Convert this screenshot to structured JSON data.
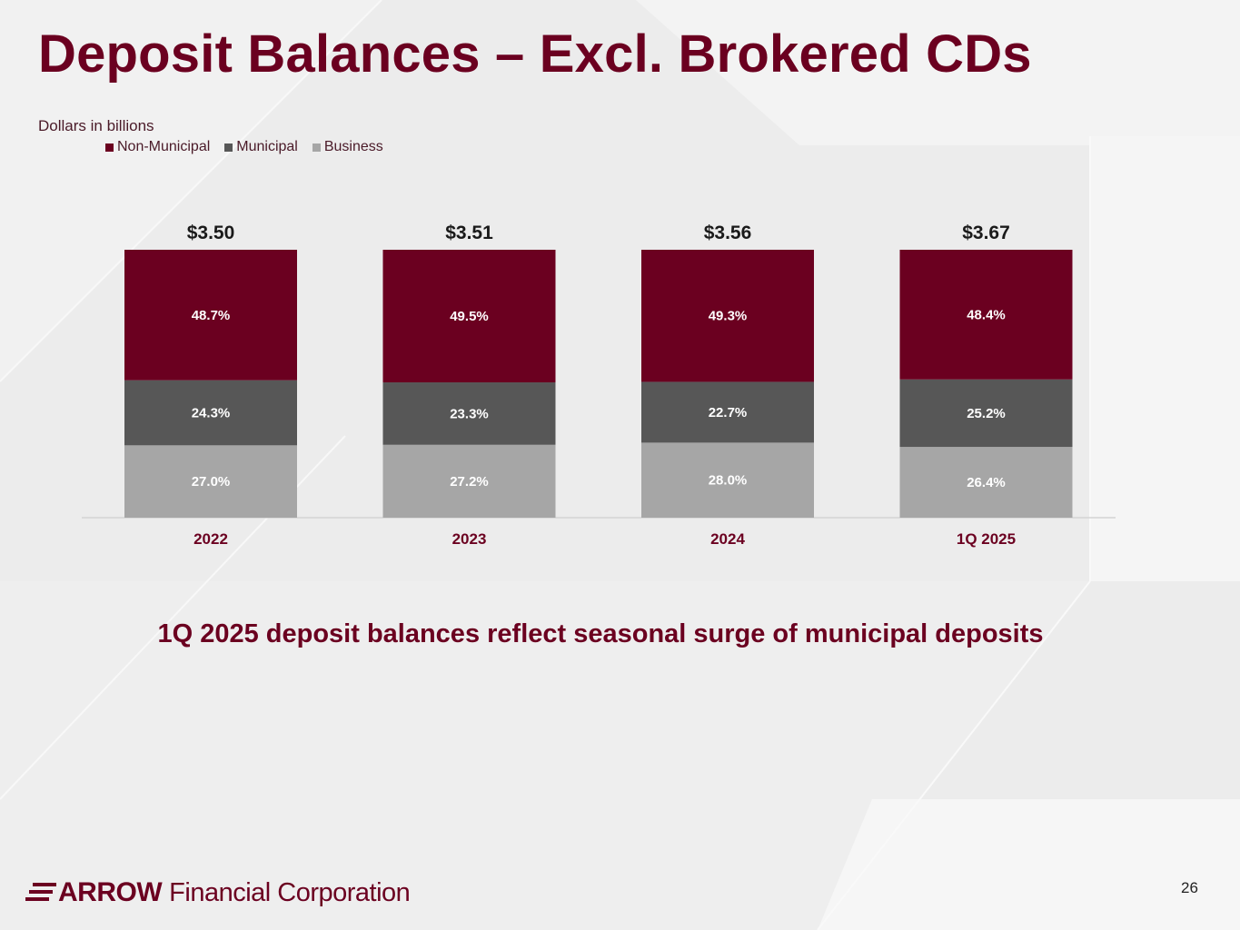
{
  "slide": {
    "title": "Deposit Balances – Excl. Brokered CDs",
    "units_note": "Dollars in billions",
    "caption": "1Q 2025 deposit balances reflect seasonal surge of municipal deposits",
    "page_number": "26"
  },
  "logo": {
    "bold_text": "ARROW",
    "rest_text": "Financial Corporation"
  },
  "colors": {
    "non_municipal": "#6b0020",
    "municipal": "#575757",
    "business": "#a6a6a6",
    "title": "#6b0020"
  },
  "chart_data": {
    "type": "bar",
    "stacked": "percent",
    "categories": [
      "2022",
      "2023",
      "2024",
      "1Q 2025"
    ],
    "totals": [
      3.5,
      3.51,
      3.56,
      3.67
    ],
    "total_labels": [
      "$3.50",
      "$3.51",
      "$3.56",
      "$3.67"
    ],
    "series": [
      {
        "name": "Business",
        "color": "#a6a6a6",
        "values": [
          27.0,
          27.2,
          28.0,
          26.4
        ],
        "labels": [
          "27.0%",
          "27.2%",
          "28.0%",
          "26.4%"
        ]
      },
      {
        "name": "Municipal",
        "color": "#575757",
        "values": [
          24.3,
          23.3,
          22.7,
          25.2
        ],
        "labels": [
          "24.3%",
          "23.3%",
          "22.7%",
          "25.2%"
        ]
      },
      {
        "name": "Non-Municipal",
        "color": "#6b0020",
        "values": [
          48.7,
          49.5,
          49.3,
          48.4
        ],
        "labels": [
          "48.7%",
          "49.5%",
          "49.3%",
          "48.4%"
        ]
      }
    ],
    "legend_order": [
      "Non-Municipal",
      "Municipal",
      "Business"
    ],
    "legend_position": "top-left",
    "ylim": [
      0,
      100
    ],
    "grid": false
  }
}
